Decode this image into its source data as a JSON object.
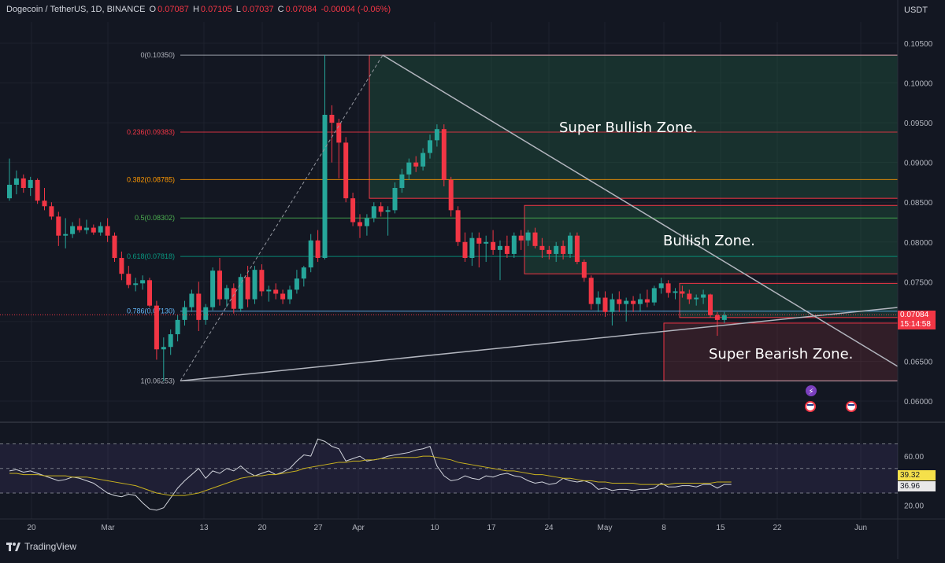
{
  "header": {
    "symbol": "Dogecoin / TetherUS, 1D, BINANCE",
    "o_label": "O",
    "o_value": "0.07087",
    "h_label": "H",
    "h_value": "0.07105",
    "l_label": "L",
    "l_value": "0.07037",
    "c_label": "C",
    "c_value": "0.07084",
    "change": "-0.00004 (-0.06%)"
  },
  "currency": "USDT",
  "branding": "TradingView",
  "last_price": {
    "value": "0.07084",
    "countdown": "15:14:58"
  },
  "rsi_badges": {
    "ma": "39.32",
    "rsi": "36.96"
  },
  "colors": {
    "background": "#131722",
    "up": "#26a69a",
    "down": "#f23645",
    "grid": "#1e222d",
    "trendline": "#b2b5be",
    "rsi_line": "#d1d4dc",
    "rsi_ma": "#c9b21f",
    "zone_green": "#1f3a2e",
    "zone_red": "#3a1f26"
  },
  "chart_data": [
    {
      "type": "candlestick",
      "symbol": "DOGEUSDT",
      "interval": "1D",
      "y_axis_ticks": [
        "0.10500",
        "0.10000",
        "0.09500",
        "0.09000",
        "0.08500",
        "0.08000",
        "0.07500",
        "0.07000",
        "0.06500",
        "0.06000"
      ],
      "ylim": [
        0.0595,
        0.1055
      ],
      "x_axis_ticks": [
        "20",
        "Mar",
        "13",
        "20",
        "27",
        "Apr",
        "10",
        "17",
        "24",
        "May",
        "8",
        "15",
        "22",
        "Jun"
      ],
      "candles": [
        [
          0.0855,
          0.0905,
          0.0852,
          0.0872
        ],
        [
          0.0872,
          0.089,
          0.086,
          0.088
        ],
        [
          0.088,
          0.0885,
          0.0862,
          0.0868
        ],
        [
          0.0868,
          0.0882,
          0.0858,
          0.0878
        ],
        [
          0.0878,
          0.088,
          0.0848,
          0.0852
        ],
        [
          0.0852,
          0.0868,
          0.084,
          0.0845
        ],
        [
          0.0845,
          0.085,
          0.0828,
          0.0832
        ],
        [
          0.0832,
          0.0838,
          0.0795,
          0.0808
        ],
        [
          0.0808,
          0.083,
          0.0792,
          0.081
        ],
        [
          0.081,
          0.0825,
          0.0805,
          0.082
        ],
        [
          0.082,
          0.083,
          0.0812,
          0.0815
        ],
        [
          0.0815,
          0.0828,
          0.081,
          0.0818
        ],
        [
          0.0818,
          0.0822,
          0.0809,
          0.0812
        ],
        [
          0.0812,
          0.0825,
          0.0808,
          0.082
        ],
        [
          0.082,
          0.083,
          0.08,
          0.0808
        ],
        [
          0.0808,
          0.0812,
          0.0775,
          0.078
        ],
        [
          0.078,
          0.0788,
          0.0752,
          0.076
        ],
        [
          0.076,
          0.077,
          0.0742,
          0.0746
        ],
        [
          0.0746,
          0.0755,
          0.0738,
          0.0748
        ],
        [
          0.0748,
          0.0758,
          0.074,
          0.0752
        ],
        [
          0.0752,
          0.0755,
          0.0718,
          0.072
        ],
        [
          0.072,
          0.0726,
          0.0652,
          0.0665
        ],
        [
          0.0665,
          0.068,
          0.0625,
          0.0668
        ],
        [
          0.0668,
          0.069,
          0.0658,
          0.0684
        ],
        [
          0.0684,
          0.0708,
          0.0675,
          0.0702
        ],
        [
          0.0702,
          0.0726,
          0.0695,
          0.0718
        ],
        [
          0.0718,
          0.074,
          0.0712,
          0.0735
        ],
        [
          0.0735,
          0.075,
          0.0688,
          0.0702
        ],
        [
          0.0702,
          0.0722,
          0.0696,
          0.0718
        ],
        [
          0.0718,
          0.0768,
          0.0714,
          0.0764
        ],
        [
          0.0764,
          0.078,
          0.072,
          0.0728
        ],
        [
          0.0728,
          0.0746,
          0.0718,
          0.0742
        ],
        [
          0.0742,
          0.0748,
          0.071,
          0.0716
        ],
        [
          0.0716,
          0.076,
          0.0712,
          0.0756
        ],
        [
          0.0756,
          0.077,
          0.0718,
          0.0728
        ],
        [
          0.0728,
          0.077,
          0.0722,
          0.0765
        ],
        [
          0.0765,
          0.0772,
          0.0732,
          0.0738
        ],
        [
          0.0738,
          0.0745,
          0.0725,
          0.074
        ],
        [
          0.074,
          0.0748,
          0.0728,
          0.0735
        ],
        [
          0.0735,
          0.074,
          0.0722,
          0.0728
        ],
        [
          0.0728,
          0.0745,
          0.0722,
          0.074
        ],
        [
          0.074,
          0.0765,
          0.0735,
          0.0754
        ],
        [
          0.0754,
          0.077,
          0.0744,
          0.0768
        ],
        [
          0.0768,
          0.081,
          0.0762,
          0.0802
        ],
        [
          0.0802,
          0.0815,
          0.0775,
          0.078
        ],
        [
          0.078,
          0.1035,
          0.0778,
          0.096
        ],
        [
          0.096,
          0.0972,
          0.09,
          0.095
        ],
        [
          0.095,
          0.0955,
          0.088,
          0.0925
        ],
        [
          0.0925,
          0.0932,
          0.085,
          0.0855
        ],
        [
          0.0855,
          0.0862,
          0.082,
          0.0825
        ],
        [
          0.0825,
          0.0835,
          0.0805,
          0.082
        ],
        [
          0.082,
          0.0835,
          0.0808,
          0.083
        ],
        [
          0.083,
          0.085,
          0.0825,
          0.0845
        ],
        [
          0.0845,
          0.085,
          0.0832,
          0.0838
        ],
        [
          0.0838,
          0.0845,
          0.0808,
          0.084
        ],
        [
          0.084,
          0.0875,
          0.0836,
          0.0868
        ],
        [
          0.0868,
          0.0892,
          0.0862,
          0.0885
        ],
        [
          0.0885,
          0.0905,
          0.0878,
          0.09
        ],
        [
          0.09,
          0.0908,
          0.0888,
          0.0895
        ],
        [
          0.0895,
          0.0918,
          0.089,
          0.0912
        ],
        [
          0.0912,
          0.0935,
          0.0905,
          0.0928
        ],
        [
          0.0928,
          0.0948,
          0.092,
          0.0942
        ],
        [
          0.0942,
          0.0948,
          0.087,
          0.0878
        ],
        [
          0.0878,
          0.0882,
          0.0832,
          0.084
        ],
        [
          0.084,
          0.0845,
          0.0795,
          0.08
        ],
        [
          0.08,
          0.0812,
          0.0775,
          0.078
        ],
        [
          0.078,
          0.0812,
          0.077,
          0.0805
        ],
        [
          0.0805,
          0.0812,
          0.0768,
          0.0798
        ],
        [
          0.0798,
          0.0808,
          0.0775,
          0.08
        ],
        [
          0.08,
          0.0815,
          0.0784,
          0.079
        ],
        [
          0.079,
          0.0802,
          0.0752,
          0.0795
        ],
        [
          0.0795,
          0.0808,
          0.078,
          0.0785
        ],
        [
          0.0785,
          0.0812,
          0.078,
          0.0808
        ],
        [
          0.0808,
          0.0815,
          0.079,
          0.0802
        ],
        [
          0.0802,
          0.0815,
          0.0795,
          0.0812
        ],
        [
          0.0812,
          0.0818,
          0.0792,
          0.0795
        ],
        [
          0.0795,
          0.0805,
          0.078,
          0.079
        ],
        [
          0.079,
          0.0795,
          0.0778,
          0.0785
        ],
        [
          0.0785,
          0.08,
          0.0775,
          0.0795
        ],
        [
          0.0795,
          0.0802,
          0.0778,
          0.0785
        ],
        [
          0.0785,
          0.0812,
          0.078,
          0.0808
        ],
        [
          0.0808,
          0.0812,
          0.0772,
          0.0775
        ],
        [
          0.0775,
          0.0778,
          0.075,
          0.0755
        ],
        [
          0.0755,
          0.0758,
          0.0715,
          0.0722
        ],
        [
          0.0722,
          0.0738,
          0.0712,
          0.073
        ],
        [
          0.073,
          0.0738,
          0.0706,
          0.0712
        ],
        [
          0.0712,
          0.0735,
          0.0695,
          0.0728
        ],
        [
          0.0728,
          0.0738,
          0.0712,
          0.0722
        ],
        [
          0.0722,
          0.073,
          0.07,
          0.0726
        ],
        [
          0.0726,
          0.0732,
          0.0712,
          0.0722
        ],
        [
          0.0722,
          0.0735,
          0.0712,
          0.0728
        ],
        [
          0.0728,
          0.074,
          0.0718,
          0.0724
        ],
        [
          0.0724,
          0.0745,
          0.072,
          0.0742
        ],
        [
          0.0742,
          0.0755,
          0.0735,
          0.0748
        ],
        [
          0.0748,
          0.0752,
          0.073,
          0.0736
        ],
        [
          0.0736,
          0.0742,
          0.0728,
          0.0738
        ],
        [
          0.0738,
          0.0745,
          0.073,
          0.0735
        ],
        [
          0.0735,
          0.074,
          0.0722,
          0.0728
        ],
        [
          0.0728,
          0.0734,
          0.072,
          0.073
        ],
        [
          0.073,
          0.074,
          0.0722,
          0.0734
        ],
        [
          0.0734,
          0.0735,
          0.0705,
          0.0708
        ],
        [
          0.0708,
          0.0712,
          0.0682,
          0.0702
        ],
        [
          0.0702,
          0.0712,
          0.0698,
          0.0708
        ]
      ],
      "fibonacci": [
        {
          "label": "0(0.10350)",
          "value": 0.1035,
          "color": "#b2b5be"
        },
        {
          "label": "0.236(0.09383)",
          "value": 0.09383,
          "color": "#f23645"
        },
        {
          "label": "0.382(0.08785)",
          "value": 0.08785,
          "color": "#ff9800"
        },
        {
          "label": "0.5(0.08302)",
          "value": 0.08302,
          "color": "#4caf50"
        },
        {
          "label": "0.618(0.07818)",
          "value": 0.07818,
          "color": "#089981"
        },
        {
          "label": "0.786(0.07130)",
          "value": 0.0713,
          "color": "#64b5f6"
        },
        {
          "label": "1(0.06253)",
          "value": 0.06253,
          "color": "#b2b5be"
        }
      ],
      "zones": [
        {
          "label": "Super Bullish Zone.",
          "from": 0.0855,
          "to": 0.1035,
          "kind": "green"
        },
        {
          "label": "Bullish Zone.",
          "from": 0.076,
          "to": 0.0846,
          "kind": "green"
        },
        {
          "label": "",
          "from": 0.0705,
          "to": 0.0748,
          "kind": "green"
        },
        {
          "label": "Super Bearish Zone.",
          "from": 0.06253,
          "to": 0.0698,
          "kind": "red"
        }
      ]
    },
    {
      "type": "line",
      "name": "RSI",
      "y_axis_ticks": [
        "60.00",
        "20.00"
      ],
      "ylim": [
        14,
        78
      ],
      "bands": [
        70,
        50,
        30
      ],
      "series": [
        {
          "values": [
            48,
            49,
            47,
            48,
            46,
            44,
            42,
            40,
            41,
            43,
            42,
            40,
            38,
            34,
            30,
            28,
            27,
            29,
            28,
            22,
            17,
            16,
            18,
            26,
            34,
            40,
            45,
            50,
            42,
            48,
            46,
            50,
            48,
            52,
            47,
            44,
            46,
            48,
            45,
            47,
            50,
            56,
            61,
            60,
            74,
            72,
            68,
            66,
            56,
            58,
            60,
            56,
            57,
            58,
            60,
            61,
            62,
            63,
            65,
            66,
            68,
            52,
            44,
            40,
            41,
            44,
            42,
            41,
            44,
            43,
            45,
            46,
            44,
            43,
            40,
            38,
            39,
            37,
            38,
            42,
            40,
            39,
            40,
            38,
            33,
            34,
            32,
            33,
            33,
            32,
            33,
            33,
            34,
            38,
            35,
            35,
            36,
            36,
            35,
            37,
            37,
            34,
            37,
            37
          ]
        },
        {
          "values": [
            46,
            46,
            45,
            45,
            45,
            44,
            44,
            44,
            44,
            43,
            43,
            43,
            42,
            41,
            40,
            39,
            38,
            37,
            36,
            34,
            32,
            30,
            29,
            28,
            28,
            28,
            29,
            30,
            32,
            34,
            36,
            38,
            40,
            42,
            43,
            44,
            44,
            45,
            45,
            46,
            47,
            48,
            50,
            51,
            52,
            53,
            54,
            55,
            55,
            56,
            56,
            57,
            57,
            58,
            58,
            59,
            59,
            59,
            59,
            60,
            60,
            59,
            58,
            57,
            55,
            54,
            53,
            52,
            51,
            50,
            49,
            48,
            48,
            47,
            46,
            45,
            45,
            44,
            43,
            42,
            42,
            41,
            40,
            40,
            39,
            39,
            38,
            38,
            38,
            38,
            37,
            37,
            37,
            37,
            37,
            38,
            38,
            38,
            38,
            38,
            38,
            39,
            39,
            39
          ]
        }
      ]
    }
  ]
}
